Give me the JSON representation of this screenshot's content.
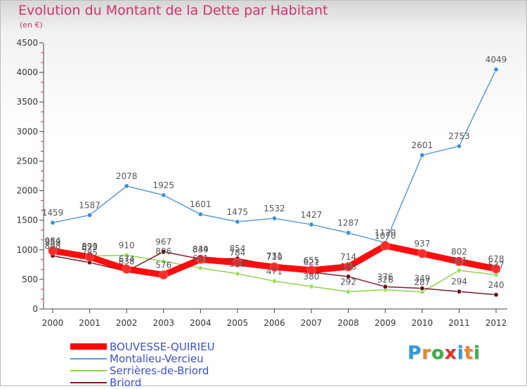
{
  "title": "Evolution du Montant de la Dette par Habitant",
  "subtitle": "(en €)",
  "logo_text": "Proxiti",
  "chart_data": {
    "type": "line",
    "title": "Evolution du Montant de la Dette par Habitant",
    "ylabel": "(en €)",
    "ylim": [
      0,
      4500
    ],
    "yticks": [
      0,
      500,
      1000,
      1500,
      2000,
      2500,
      3000,
      3500,
      4000,
      4500
    ],
    "x": [
      "2000",
      "2001",
      "2002",
      "2003",
      "2004",
      "2005",
      "2006",
      "2007",
      "2008",
      "2009",
      "2010",
      "2011",
      "2012"
    ],
    "grid": false,
    "legend_position": "bottom-left",
    "series": [
      {
        "name": "BOUVESSE-QUIRIEU",
        "color": "#ff0000",
        "values": [
          984,
          879,
          674,
          576,
          839,
          784,
          710,
          655,
          714,
          1070,
          937,
          802,
          678
        ]
      },
      {
        "name": "Montalieu-Vercieu",
        "color": "#5b9bd5",
        "values": [
          1459,
          1587,
          2078,
          1925,
          1601,
          1475,
          1532,
          1427,
          1287,
          1120,
          2601,
          2753,
          4049
        ]
      },
      {
        "name": "Serrières-de-Briord",
        "color": "#8fd14f",
        "values": [
          959,
          893,
          910,
          806,
          691,
          596,
          471,
          380,
          292,
          326,
          287,
          651,
          577
        ]
      },
      {
        "name": "Briord",
        "color": "#7a1f2b",
        "values": [
          898,
          785,
          638,
          967,
          844,
          854,
          731,
          621,
          548,
          376,
          349,
          294,
          240
        ]
      }
    ]
  }
}
